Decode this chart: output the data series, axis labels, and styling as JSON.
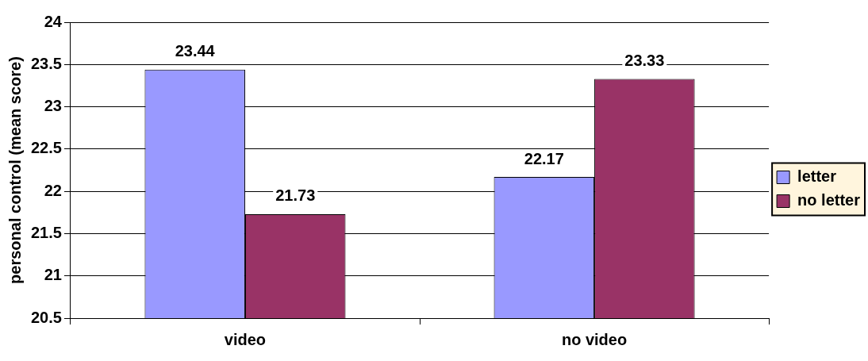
{
  "chart_data": {
    "type": "bar",
    "ylabel": "personal control (mean score)",
    "categories": [
      "video",
      "no video"
    ],
    "series": [
      {
        "name": "letter",
        "color": "#9999ff",
        "values": [
          23.44,
          22.17
        ]
      },
      {
        "name": "no letter",
        "color": "#993366",
        "values": [
          21.73,
          23.33
        ]
      }
    ],
    "ylim": [
      20.5,
      24
    ],
    "yticks": [
      20.5,
      21,
      21.5,
      22,
      22.5,
      23,
      23.5,
      24
    ],
    "grid": "y",
    "legend": "right",
    "data_labels": true
  }
}
